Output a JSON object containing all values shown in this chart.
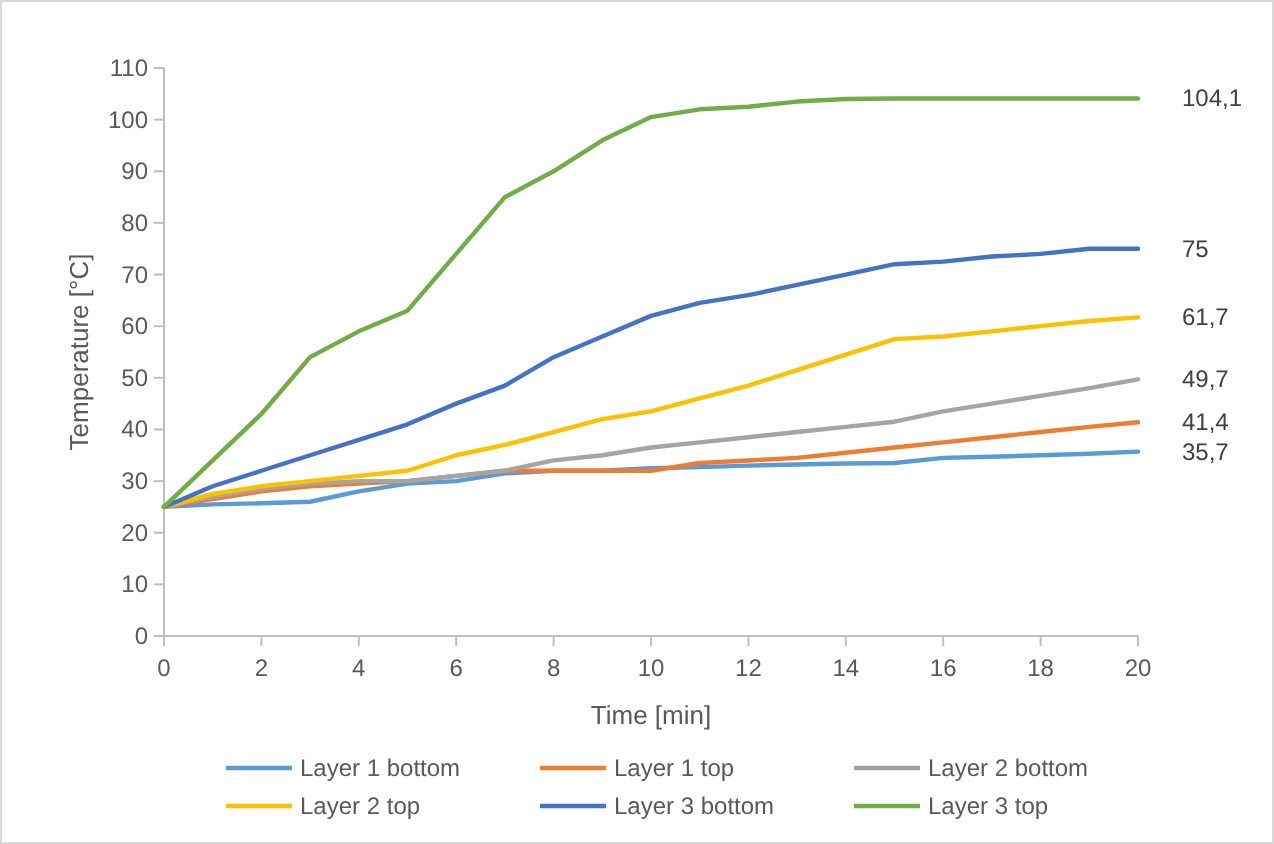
{
  "chart_data": {
    "type": "line",
    "xlabel": "Time [min]",
    "ylabel": "Temperature [°C]",
    "x": [
      0,
      1,
      2,
      3,
      4,
      5,
      6,
      7,
      8,
      9,
      10,
      11,
      12,
      13,
      14,
      15,
      16,
      17,
      18,
      19,
      20
    ],
    "xlim": [
      0,
      20
    ],
    "xticks": [
      0,
      2,
      4,
      6,
      8,
      10,
      12,
      14,
      16,
      18,
      20
    ],
    "ylim": [
      0,
      110
    ],
    "yticks": [
      0,
      10,
      20,
      30,
      40,
      50,
      60,
      70,
      80,
      90,
      100,
      110
    ],
    "grid": false,
    "legend": "bottom",
    "line_style": "solid",
    "marker": "none",
    "series": [
      {
        "name": "Layer 1 bottom",
        "color": "#5b9bd5",
        "values": [
          25,
          25.5,
          25.7,
          26,
          28,
          29.5,
          30,
          31.5,
          32,
          32,
          32.5,
          32.7,
          33,
          33.2,
          33.4,
          33.5,
          34.5,
          34.7,
          35,
          35.3,
          35.7
        ],
        "value_labels": [
          null,
          null,
          null,
          null,
          null,
          null,
          null,
          null,
          null,
          null,
          null,
          null,
          null,
          null,
          null,
          null,
          null,
          null,
          null,
          null,
          "35,7"
        ]
      },
      {
        "name": "Layer 1 top",
        "color": "#ed7d31",
        "values": [
          25,
          26.5,
          28,
          29,
          29.5,
          30,
          31,
          32,
          32,
          32,
          32,
          33.5,
          34,
          34.5,
          35.5,
          36.5,
          37.5,
          38.5,
          39.5,
          40.5,
          41.4
        ],
        "value_labels": [
          null,
          null,
          null,
          null,
          null,
          null,
          null,
          null,
          null,
          null,
          null,
          null,
          null,
          null,
          null,
          null,
          null,
          null,
          null,
          null,
          "41,4"
        ]
      },
      {
        "name": "Layer 2 bottom",
        "color": "#a5a5a5",
        "values": [
          25,
          27,
          28.5,
          29.5,
          30,
          30,
          31,
          32,
          34,
          35,
          36.5,
          37.5,
          38.5,
          39.5,
          40.5,
          41.5,
          43.5,
          45,
          46.5,
          48,
          49.7
        ],
        "value_labels": [
          null,
          null,
          null,
          null,
          null,
          null,
          null,
          null,
          null,
          null,
          null,
          null,
          null,
          null,
          null,
          null,
          null,
          null,
          null,
          null,
          "49,7"
        ]
      },
      {
        "name": "Layer 2 top",
        "color": "#ffc000",
        "values": [
          25,
          27.5,
          29,
          30,
          31,
          32,
          35,
          37,
          39.5,
          42,
          43.5,
          46,
          48.5,
          51.5,
          54.5,
          57.5,
          58,
          59,
          60,
          61,
          61.7
        ],
        "value_labels": [
          null,
          null,
          null,
          null,
          null,
          null,
          null,
          null,
          null,
          null,
          null,
          null,
          null,
          null,
          null,
          null,
          null,
          null,
          null,
          null,
          "61,7"
        ]
      },
      {
        "name": "Layer 3 bottom",
        "color": "#4472c4",
        "values": [
          25,
          29,
          32,
          35,
          38,
          41,
          45,
          48.5,
          54,
          58,
          62,
          64.5,
          66,
          68,
          70,
          72,
          72.5,
          73.5,
          74,
          75,
          75
        ],
        "value_labels": [
          null,
          null,
          null,
          null,
          null,
          null,
          null,
          null,
          null,
          null,
          null,
          null,
          null,
          null,
          null,
          null,
          null,
          null,
          null,
          null,
          "75"
        ]
      },
      {
        "name": "Layer 3 top",
        "color": "#70ad47",
        "values": [
          25,
          34,
          43,
          54,
          59,
          63,
          74,
          85,
          90,
          96,
          100.5,
          102,
          102.5,
          103.5,
          104,
          104.1,
          104.1,
          104.1,
          104.1,
          104.1,
          104.1
        ],
        "value_labels": [
          null,
          null,
          null,
          null,
          null,
          null,
          null,
          null,
          null,
          null,
          null,
          null,
          null,
          null,
          null,
          null,
          null,
          null,
          null,
          null,
          "104,1"
        ]
      }
    ]
  }
}
